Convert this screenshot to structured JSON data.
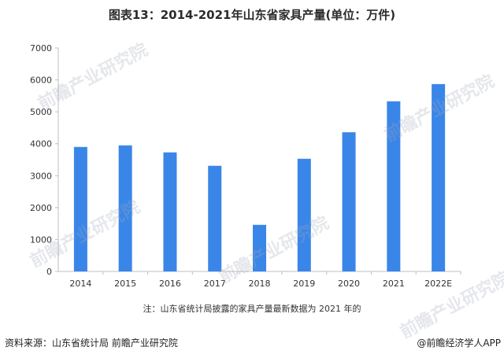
{
  "header": {
    "title": "图表13：2014-2021年山东省家具产量(单位：万件)"
  },
  "watermark_text": "前瞻产业研究院",
  "note": "注：山东省统计局披露的家具产量最新数据为 2021 年的",
  "footer": {
    "source": "资料来源：山东省统计局 前瞻产业研究院",
    "brand": "@前瞻经济学人APP"
  },
  "colors": {
    "bar": "#3a86e8",
    "axis": "#bfbfbf",
    "text": "#333333"
  },
  "chart_data": {
    "type": "bar",
    "categories": [
      "2014",
      "2015",
      "2016",
      "2017",
      "2018",
      "2019",
      "2020",
      "2021",
      "2022E"
    ],
    "values": [
      3900,
      3950,
      3730,
      3310,
      1460,
      3530,
      4360,
      5330,
      5870
    ],
    "y_ticks": [
      0,
      1000,
      2000,
      3000,
      4000,
      5000,
      6000,
      7000
    ],
    "ylim": [
      0,
      7000
    ],
    "title": "图表13：2014-2021年山东省家具产量(单位：万件)",
    "xlabel": "",
    "ylabel": "",
    "grid": false,
    "legend": "none"
  }
}
